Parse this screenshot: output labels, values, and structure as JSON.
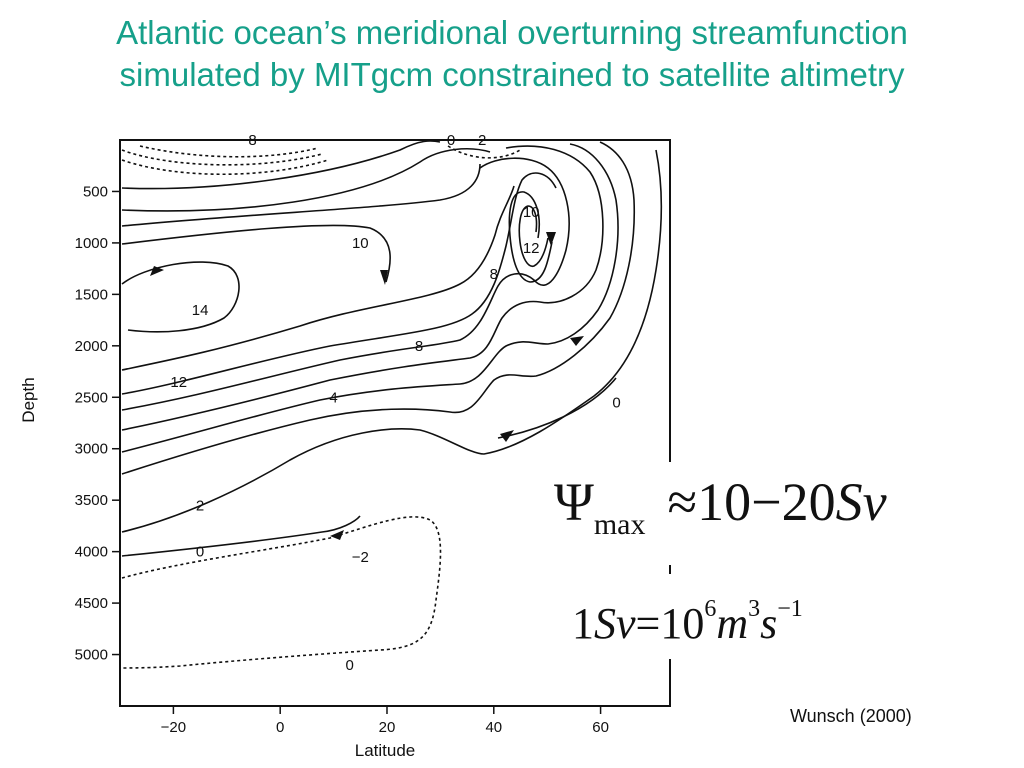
{
  "slide": {
    "title_line1": "Atlantic ocean’s meridional overturning streamfunction",
    "title_line2": "simulated by MITgcm constrained to satellite altimetry",
    "title_color": "#16a08a",
    "citation": "Wunsch (2000)"
  },
  "formula1": {
    "symbol": "Ψ",
    "subscript": "max",
    "approx": "≈",
    "value": "10",
    "minus": "−",
    "value2": "20",
    "unit": "Sv"
  },
  "formula2": {
    "lhs_num": "1",
    "lhs_unit": "Sv",
    "equals": "=",
    "base": "10",
    "exp1": "6",
    "m": "m",
    "exp2": "3",
    "s": "s",
    "exp3": "−1"
  },
  "chart_data": {
    "type": "contour",
    "xlabel": "Latitude",
    "ylabel": "Depth",
    "xlim": [
      -30,
      73
    ],
    "ylim": [
      5500,
      0
    ],
    "x_ticks": [
      -20,
      0,
      20,
      40,
      60
    ],
    "x_tick_labels": [
      "−20",
      "0",
      "20",
      "40",
      "60"
    ],
    "y_ticks": [
      500,
      1000,
      1500,
      2000,
      2500,
      3000,
      3500,
      4000,
      4500,
      5000
    ],
    "y_tick_labels": [
      "500",
      "1000",
      "1500",
      "2000",
      "2500",
      "3000",
      "3500",
      "4000",
      "4500",
      "5000"
    ],
    "units": "Sv",
    "line_style": "solid = positive/zero, dashed = negative",
    "contour_labels": [
      {
        "text": "−8",
        "lat": -6,
        "depth": 0
      },
      {
        "text": "0",
        "lat": 32,
        "depth": 0
      },
      {
        "text": "−2",
        "lat": 37,
        "depth": 0
      },
      {
        "text": "10",
        "lat": 47,
        "depth": 700
      },
      {
        "text": "12",
        "lat": 47,
        "depth": 1050
      },
      {
        "text": "10",
        "lat": 15,
        "depth": 1000
      },
      {
        "text": "8",
        "lat": 40,
        "depth": 1300
      },
      {
        "text": "14",
        "lat": -15,
        "depth": 1650
      },
      {
        "text": "8",
        "lat": 26,
        "depth": 2000
      },
      {
        "text": "12",
        "lat": -19,
        "depth": 2350
      },
      {
        "text": "4",
        "lat": 10,
        "depth": 2500
      },
      {
        "text": "0",
        "lat": 63,
        "depth": 2550
      },
      {
        "text": "2",
        "lat": -15,
        "depth": 3550
      },
      {
        "text": "0",
        "lat": -15,
        "depth": 4000
      },
      {
        "text": "−2",
        "lat": 15,
        "depth": 4050
      },
      {
        "text": "0",
        "lat": 13,
        "depth": 5100
      }
    ]
  }
}
